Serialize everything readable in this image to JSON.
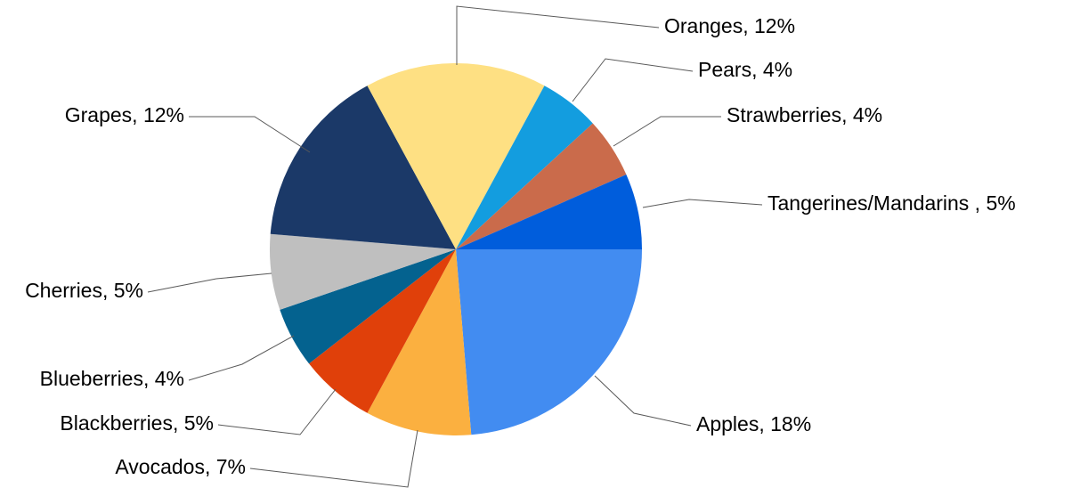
{
  "chart_data": {
    "type": "pie",
    "start_angle_deg": 0,
    "direction": "clockwise",
    "legend": "none",
    "slices": [
      {
        "label": "Apples, 18%",
        "name": "Apples",
        "value": 18,
        "color": "#428CF1"
      },
      {
        "label": "Avocados, 7%",
        "name": "Avocados",
        "value": 7,
        "color": "#FBB040"
      },
      {
        "label": "Blackberries, 5%",
        "name": "Blackberries",
        "value": 5,
        "color": "#E0400A"
      },
      {
        "label": "Blueberries, 4%",
        "name": "Blueberries",
        "value": 4,
        "color": "#04628F"
      },
      {
        "label": "Cherries, 5%",
        "name": "Cherries",
        "value": 5,
        "color": "#BFBFBF"
      },
      {
        "label": "Grapes, 12%",
        "name": "Grapes",
        "value": 12,
        "color": "#1B3968"
      },
      {
        "label": "Oranges, 12%",
        "name": "Oranges",
        "value": 12,
        "color": "#FEE083"
      },
      {
        "label": "Pears, 4%",
        "name": "Pears",
        "value": 4,
        "color": "#139DDF"
      },
      {
        "label": "Strawberries, 4%",
        "name": "Strawberries",
        "value": 4,
        "color": "#CA6B4B"
      },
      {
        "label": "Tangerines/Mandarins , 5%",
        "name": "Tangerines/Mandarins",
        "value": 5,
        "color": "#005DDC"
      }
    ]
  }
}
